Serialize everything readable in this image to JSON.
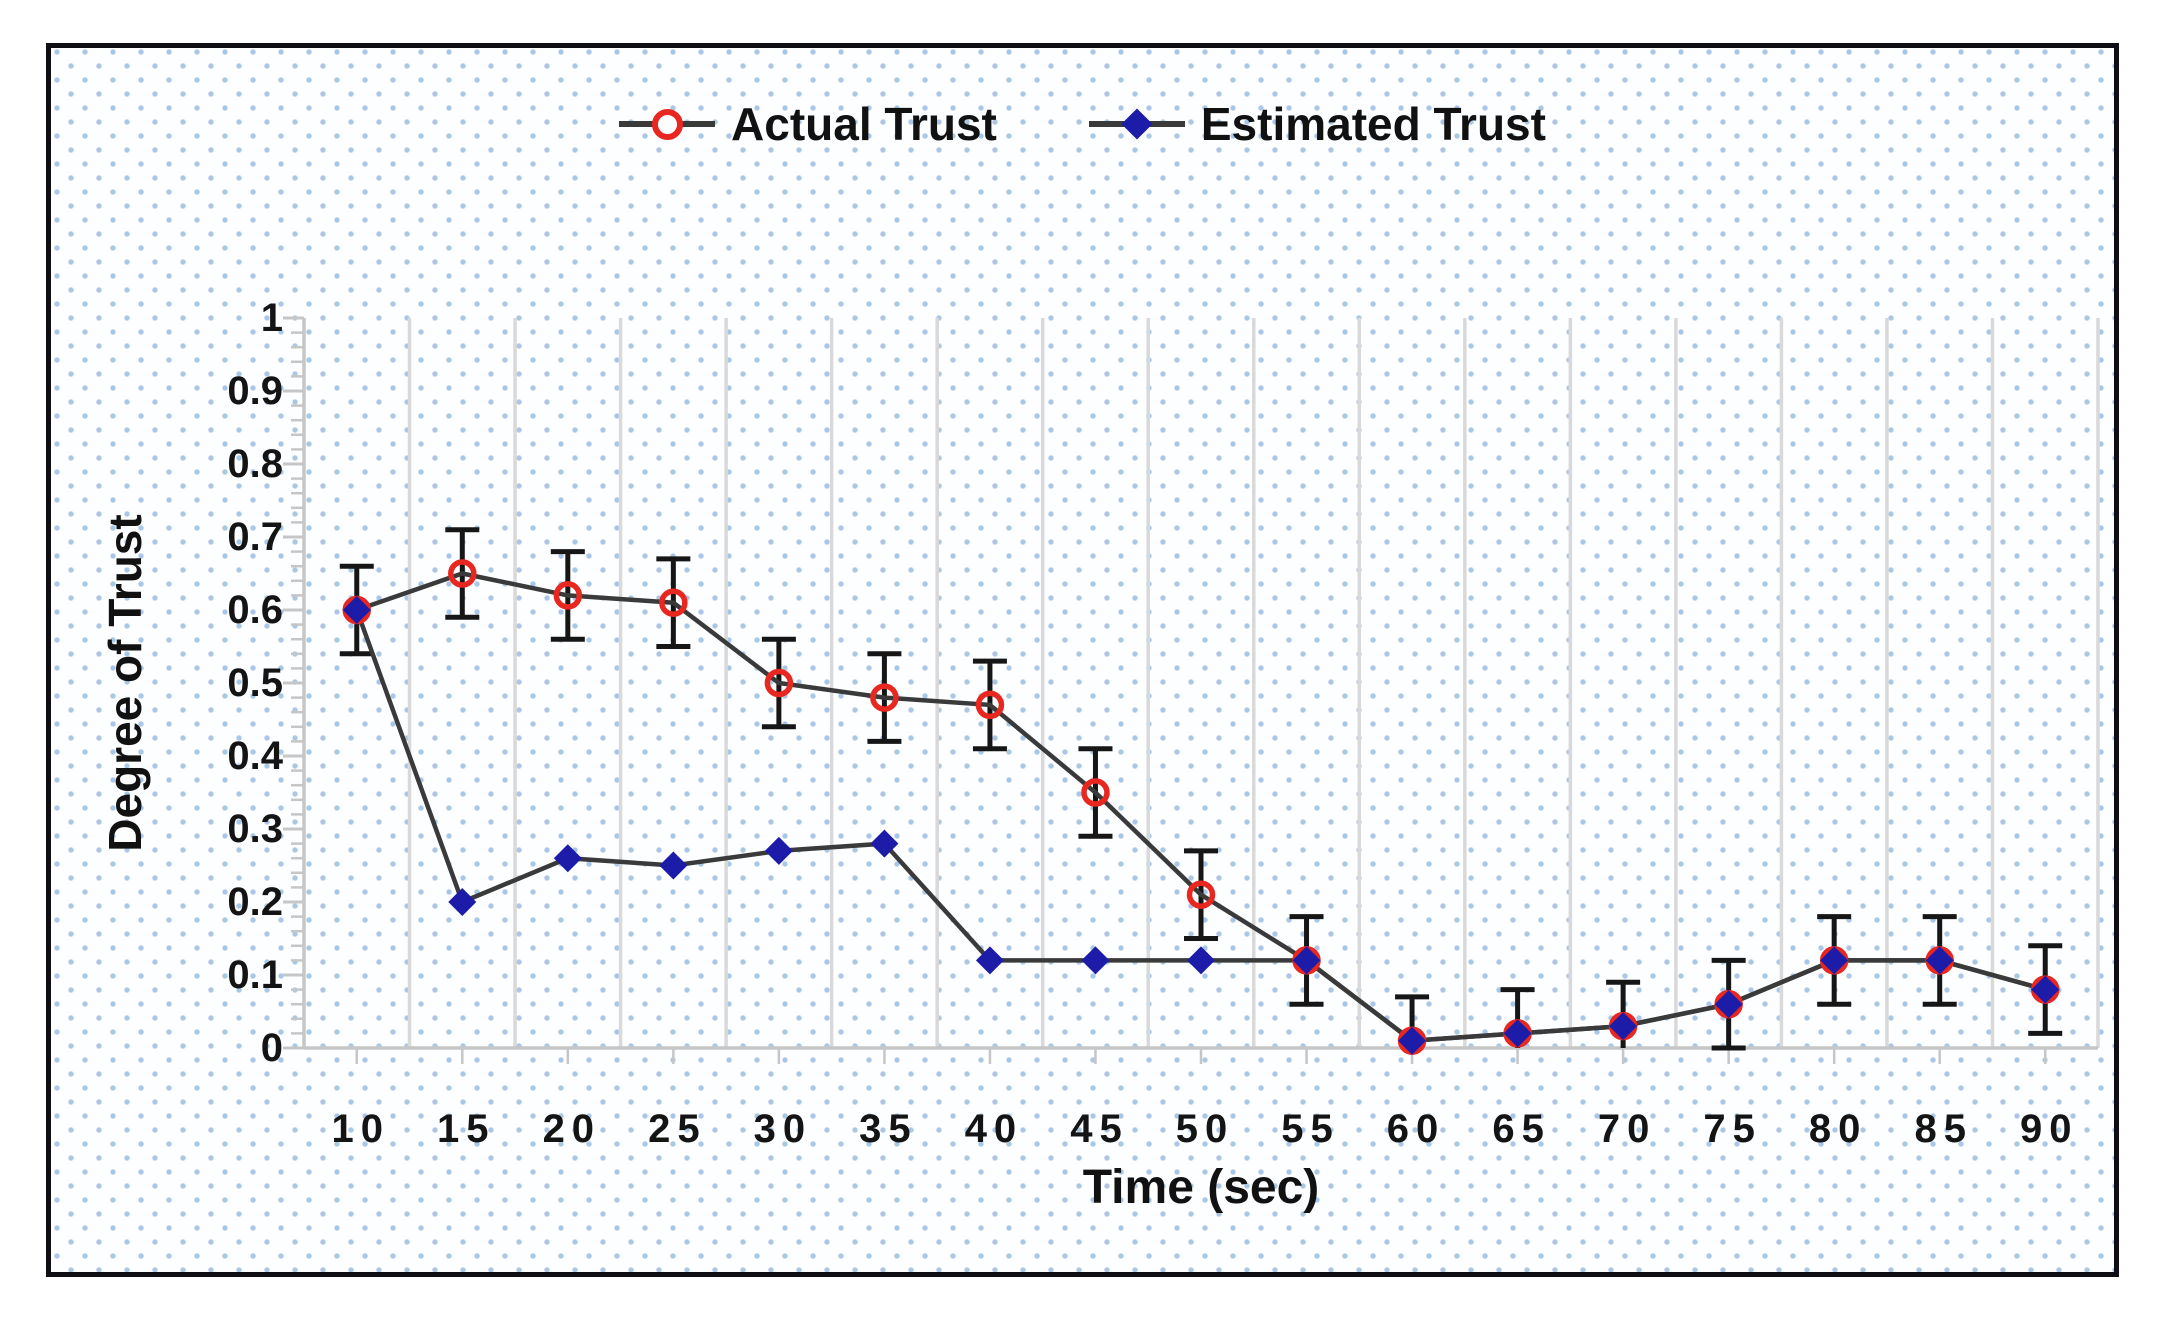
{
  "style": {
    "frame_border_color": "#0e0e14",
    "background_color": "#fdfeff",
    "background_dot_color": "#aac6e6",
    "gridline_color": "#d9d9d9",
    "axis_color": "#c6c6c6",
    "series_line_color": "#3a3a3a",
    "error_bar_color": "#161616",
    "text_color": "#111111",
    "actual_trust_color": "#e82820",
    "estimated_trust_color": "#1c1ca8"
  },
  "chart_data": {
    "type": "line",
    "title": "",
    "xlabel": "Time (sec)",
    "ylabel": "Degree of Trust",
    "x": [
      10,
      15,
      20,
      25,
      30,
      35,
      40,
      45,
      50,
      55,
      60,
      65,
      70,
      75,
      80,
      85,
      90
    ],
    "xtick_labels": [
      "10",
      "15",
      "20",
      "25",
      "30",
      "35",
      "40",
      "45",
      "50",
      "55",
      "60",
      "65",
      "70",
      "75",
      "80",
      "85",
      "90"
    ],
    "ylim": [
      0,
      1
    ],
    "ytick_values": [
      0,
      0.1,
      0.2,
      0.3,
      0.4,
      0.5,
      0.6,
      0.7,
      0.8,
      0.9,
      1
    ],
    "ytick_labels": [
      "0",
      "0.1",
      "0.2",
      "0.3",
      "0.4",
      "0.5",
      "0.6",
      "0.7",
      "0.8",
      "0.9",
      "1"
    ],
    "y_minor_tick_step": 0.02,
    "grid": "vertical gridlines at category boundaries, no horizontal gridlines",
    "legend_position": "top-center",
    "series": [
      {
        "name": "Actual Trust",
        "marker": "open-circle",
        "color": "#e82820",
        "values": [
          0.6,
          0.65,
          0.62,
          0.61,
          0.5,
          0.48,
          0.47,
          0.35,
          0.21,
          0.12,
          0.01,
          0.02,
          0.03,
          0.06,
          0.12,
          0.12,
          0.08
        ],
        "error": 0.06
      },
      {
        "name": "Estimated Trust",
        "marker": "filled-diamond",
        "color": "#1c1ca8",
        "values": [
          0.6,
          0.2,
          0.26,
          0.25,
          0.27,
          0.28,
          0.12,
          0.12,
          0.12,
          0.12,
          0.01,
          0.02,
          0.03,
          0.06,
          0.12,
          0.12,
          0.08
        ]
      }
    ]
  }
}
